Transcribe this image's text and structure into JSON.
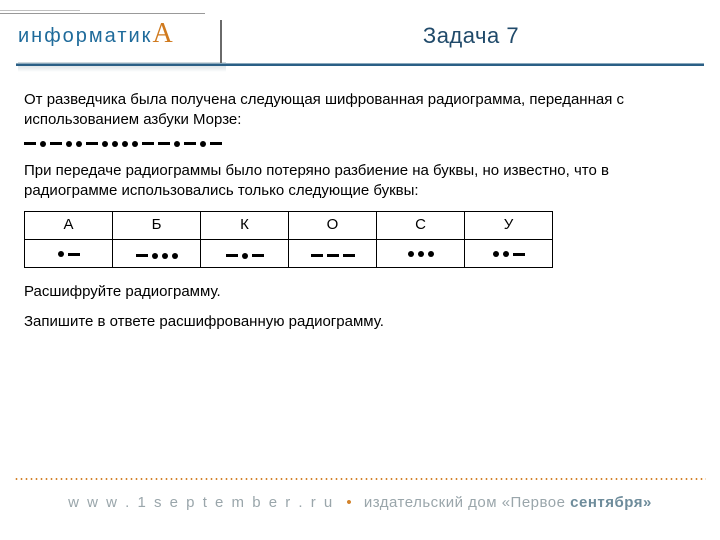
{
  "logo": {
    "prefix": "информатик",
    "accent": "А"
  },
  "title": "Задача 7",
  "para1": "От разведчика была получена следующая шифрованная радиограмма, переданная с использованием азбуки Морзе:",
  "morse_sequence": [
    "dash",
    "dot",
    "dash",
    "dot",
    "dot",
    "dash",
    "dot",
    "dot",
    "dot",
    "dot",
    "dash",
    "dash",
    "dot",
    "dash",
    "dot",
    "dash"
  ],
  "para2": "При передаче радиограммы было потеряно разбиение на буквы, но известно, что в радиограмме использовались только следующие буквы:",
  "table": {
    "headers": [
      "А",
      "Б",
      "К",
      "О",
      "С",
      "У"
    ],
    "codes": [
      [
        "dot",
        "dash"
      ],
      [
        "dash",
        "dot",
        "dot",
        "dot"
      ],
      [
        "dash",
        "dot",
        "dash"
      ],
      [
        "dash",
        "dash",
        "dash"
      ],
      [
        "dot",
        "dot",
        "dot"
      ],
      [
        "dot",
        "dot",
        "dash"
      ]
    ]
  },
  "para3": "Расшифруйте радиограмму.",
  "para4": "Запишите в ответе расшифрованную радиограмму.",
  "footer": {
    "url": "w w w . 1 s e p t e m b e r . r u",
    "publisher_prefix": "издательский дом ",
    "publisher_brand_light": "«Первое ",
    "publisher_brand_bold": "сентября»"
  },
  "colors": {
    "title_color": "#204a6a",
    "logo_color": "#1f6b9b",
    "logo_accent": "#d07a1e",
    "header_line": "#2a5f86",
    "dotted_sep": "#d3832c",
    "footer_text": "#9aa6ab"
  }
}
